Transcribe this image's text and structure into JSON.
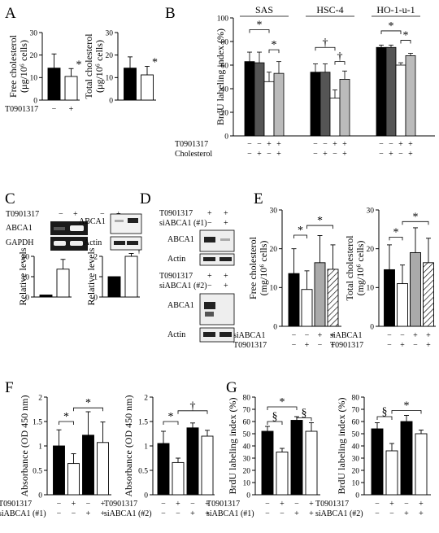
{
  "panels": {
    "A": "A",
    "B": "B",
    "C": "C",
    "D": "D",
    "E": "E",
    "F": "F",
    "G": "G"
  },
  "blots": {
    "C": {
      "lane_header": "T0901317",
      "lanes": [
        "−",
        "+"
      ],
      "gel_rows": [
        "ABCA1",
        "GAPDH"
      ],
      "wb_rows": [
        "ABCA1",
        "Actin"
      ]
    },
    "D": {
      "top": {
        "rows": [
          "T0901317",
          "siABCA1 (#1)"
        ],
        "signs": [
          [
            "+",
            "+"
          ],
          [
            "−",
            "+"
          ]
        ],
        "bands": [
          "ABCA1",
          "Actin"
        ]
      },
      "bottom": {
        "rows": [
          "T0901317",
          "siABCA1 (#2)"
        ],
        "signs": [
          [
            "+",
            "+"
          ],
          [
            "−",
            "+"
          ]
        ],
        "bands": [
          "ABCA1",
          "Actin"
        ]
      }
    }
  },
  "chart_data": [
    {
      "id": "A1",
      "type": "bar",
      "ylabel": "Free cholesterol",
      "yunit": "(μg/10⁶ cells)",
      "ylim": [
        0,
        30
      ],
      "yticks": [
        0,
        10,
        20,
        30
      ],
      "values": [
        14.2,
        10.5
      ],
      "errors": [
        6.3,
        3.5
      ],
      "fills": [
        "#000000",
        "#ffffff"
      ],
      "conditions": [
        {
          "label": "T0901317",
          "signs": [
            "−",
            "+"
          ]
        }
      ],
      "annotations": [
        {
          "type": "star",
          "text": "*",
          "bar": 1
        }
      ]
    },
    {
      "id": "A2",
      "type": "bar",
      "ylabel": "Total cholesterol",
      "yunit": "(μg/10⁶ cells)",
      "ylim": [
        0,
        30
      ],
      "yticks": [
        0,
        10,
        20,
        30
      ],
      "values": [
        14.2,
        11.2
      ],
      "errors": [
        5.0,
        3.8
      ],
      "fills": [
        "#000000",
        "#ffffff"
      ],
      "conditions": [],
      "annotations": [
        {
          "type": "star",
          "text": "*",
          "bar": 1
        }
      ]
    },
    {
      "id": "B",
      "type": "bar",
      "ylabel": "BrdU labeling index (%)",
      "ylim": [
        0,
        100
      ],
      "yticks": [
        0,
        20,
        40,
        60,
        80,
        100
      ],
      "groups": [
        "SAS",
        "HSC-4",
        "HO-1-u-1"
      ],
      "values": [
        [
          63,
          62,
          46,
          53
        ],
        [
          54,
          54,
          32,
          48
        ],
        [
          75,
          75,
          60,
          68
        ]
      ],
      "errors": [
        [
          8,
          9,
          8,
          10
        ],
        [
          7,
          7,
          7,
          7
        ],
        [
          2,
          2,
          2,
          2
        ]
      ],
      "fills": [
        "#000000",
        "#555555",
        "#ffffff",
        "#bbbbbb"
      ],
      "conditions": [
        {
          "label": "T0901317",
          "signs": [
            "−",
            "−",
            "+",
            "+"
          ]
        },
        {
          "label": "Cholesterol",
          "signs": [
            "−",
            "+",
            "−",
            "+"
          ]
        }
      ],
      "annotations": [
        {
          "g": 0,
          "from": 0,
          "to": 2,
          "text": "*",
          "level": 90
        },
        {
          "g": 0,
          "from": 2,
          "to": 3,
          "text": "*",
          "level": 73
        },
        {
          "g": 1,
          "from": 0,
          "to": 2,
          "text": "†",
          "level": 75
        },
        {
          "g": 1,
          "from": 2,
          "to": 3,
          "text": "†",
          "level": 63
        },
        {
          "g": 2,
          "from": 0,
          "to": 2,
          "text": "*",
          "level": 89
        },
        {
          "g": 2,
          "from": 2,
          "to": 3,
          "text": "*",
          "level": 81
        }
      ]
    },
    {
      "id": "C1",
      "type": "bar",
      "ylabel": "Relative levels",
      "ylim": [
        0,
        20
      ],
      "yticks": [
        0,
        10,
        20
      ],
      "values": [
        1,
        13.7
      ],
      "errors": [
        0,
        4.8
      ],
      "fills": [
        "#000000",
        "#ffffff"
      ],
      "conditions": [],
      "annotations": []
    },
    {
      "id": "C2",
      "type": "bar",
      "ylabel": "Relative levels",
      "ylim": [
        0,
        2
      ],
      "yticks": [
        0,
        1,
        2
      ],
      "values": [
        1,
        2.0
      ],
      "errors": [
        0,
        0.14
      ],
      "fills": [
        "#000000",
        "#ffffff"
      ],
      "conditions": [],
      "annotations": [
        {
          "type": "star",
          "text": "†",
          "bar": 1
        }
      ]
    },
    {
      "id": "E1",
      "type": "bar",
      "ylabel": "Free cholesterol",
      "yunit": "(mg/10⁶ cells)",
      "ylim": [
        0,
        30
      ],
      "yticks": [
        0,
        10,
        20,
        30
      ],
      "values": [
        13.6,
        9.5,
        16.4,
        14.7
      ],
      "errors": [
        6.4,
        4.8,
        7.0,
        6.3
      ],
      "fills": [
        "#000000",
        "#ffffff",
        "#aaaaaa",
        "hatch"
      ],
      "conditions": [
        {
          "label": "siABCA1",
          "signs": [
            "−",
            "−",
            "+",
            "+"
          ]
        },
        {
          "label": "T0901317",
          "signs": [
            "−",
            "+",
            "−",
            "+"
          ]
        }
      ],
      "annotations": [
        {
          "from": 0,
          "to": 1,
          "text": "*",
          "level": 23.5
        },
        {
          "from": 1,
          "to": 3,
          "text": "*",
          "level": 26
        }
      ]
    },
    {
      "id": "E2",
      "type": "bar",
      "ylabel": "Total cholesterol",
      "yunit": "(mg/10⁶ cells)",
      "ylim": [
        0,
        30
      ],
      "yticks": [
        0,
        10,
        20,
        30
      ],
      "values": [
        14.6,
        11.0,
        19.0,
        16.4
      ],
      "errors": [
        6.4,
        4.8,
        6.4,
        6.3
      ],
      "fills": [
        "#000000",
        "#ffffff",
        "#aaaaaa",
        "hatch"
      ],
      "conditions": [
        {
          "label": "siABCA1",
          "signs": [
            "−",
            "−",
            "+",
            "+"
          ]
        },
        {
          "label": "T0901317",
          "signs": [
            "−",
            "+",
            "−",
            "+"
          ]
        }
      ],
      "annotations": [
        {
          "from": 0,
          "to": 1,
          "text": "*",
          "level": 23
        },
        {
          "from": 1,
          "to": 3,
          "text": "*",
          "level": 27
        }
      ]
    },
    {
      "id": "F1",
      "type": "bar",
      "ylabel": "Absorbance (OD 450 nm)",
      "ylim": [
        0,
        2
      ],
      "yticks": [
        0,
        0.5,
        1,
        1.5,
        2
      ],
      "values": [
        1.0,
        0.64,
        1.22,
        1.07
      ],
      "errors": [
        0.33,
        0.2,
        0.48,
        0.42
      ],
      "fills": [
        "#000000",
        "#ffffff",
        "#000000",
        "#ffffff"
      ],
      "conditions": [
        {
          "label": "T0901317",
          "signs": [
            "−",
            "+",
            "−",
            "+"
          ]
        },
        {
          "label": "siABCA1 (#1)",
          "signs": [
            "−",
            "−",
            "+",
            "+"
          ]
        }
      ],
      "annotations": [
        {
          "from": 0,
          "to": 1,
          "text": "*",
          "level": 1.5
        },
        {
          "from": 1,
          "to": 3,
          "text": "*",
          "level": 1.78
        }
      ]
    },
    {
      "id": "F2",
      "type": "bar",
      "ylabel": "Absorbance (OD 450 nm)",
      "ylim": [
        0,
        2
      ],
      "yticks": [
        0,
        0.5,
        1,
        1.5,
        2
      ],
      "values": [
        1.05,
        0.66,
        1.37,
        1.2
      ],
      "errors": [
        0.25,
        0.09,
        0.1,
        0.12
      ],
      "fills": [
        "#000000",
        "#ffffff",
        "#000000",
        "#ffffff"
      ],
      "conditions": [
        {
          "label": "T0901317",
          "signs": [
            "−",
            "+",
            "−",
            "+"
          ]
        },
        {
          "label": "siABCA1 (#2)",
          "signs": [
            "−",
            "−",
            "+",
            "+"
          ]
        }
      ],
      "annotations": [
        {
          "from": 0,
          "to": 1,
          "text": "*",
          "level": 1.5
        },
        {
          "from": 1,
          "to": 3,
          "text": "†",
          "level": 1.72
        }
      ]
    },
    {
      "id": "G1",
      "type": "bar",
      "ylabel": "BrdU labeling index (%)",
      "ylim": [
        0,
        80
      ],
      "yticks": [
        0,
        10,
        20,
        30,
        40,
        50,
        60,
        70,
        80
      ],
      "values": [
        52,
        35,
        61,
        52
      ],
      "errors": [
        4,
        3,
        3,
        7
      ],
      "fills": [
        "#000000",
        "#ffffff",
        "#000000",
        "#ffffff"
      ],
      "conditions": [
        {
          "label": "T0901317",
          "signs": [
            "−",
            "+",
            "−",
            "+"
          ]
        },
        {
          "label": "siABCA1 (#1)",
          "signs": [
            "−",
            "−",
            "+",
            "+"
          ]
        }
      ],
      "annotations": [
        {
          "from": 0,
          "to": 1,
          "text": "§",
          "level": 60
        },
        {
          "from": 0,
          "to": 2,
          "text": "*",
          "level": 72
        },
        {
          "from": 2,
          "to": 3,
          "text": "§",
          "level": 63
        }
      ]
    },
    {
      "id": "G2",
      "type": "bar",
      "ylabel": "BrdU labeling index (%)",
      "ylim": [
        0,
        80
      ],
      "yticks": [
        0,
        10,
        20,
        30,
        40,
        50,
        60,
        70,
        80
      ],
      "values": [
        54,
        36,
        60,
        50
      ],
      "errors": [
        5,
        6,
        5,
        3
      ],
      "fills": [
        "#000000",
        "#ffffff",
        "#000000",
        "#ffffff"
      ],
      "conditions": [
        {
          "label": "T0901317",
          "signs": [
            "−",
            "+",
            "−",
            "+"
          ]
        },
        {
          "label": "siABCA1 (#2)",
          "signs": [
            "−",
            "−",
            "+",
            "+"
          ]
        }
      ],
      "annotations": [
        {
          "from": 0,
          "to": 1,
          "text": "§",
          "level": 64
        },
        {
          "from": 1,
          "to": 3,
          "text": "*",
          "level": 69
        }
      ]
    }
  ]
}
